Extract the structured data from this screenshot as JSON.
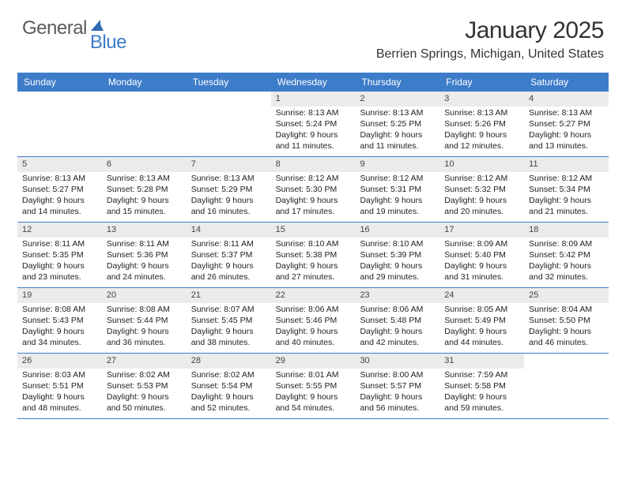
{
  "logo": {
    "general": "General",
    "blue": "Blue"
  },
  "title": "January 2025",
  "location": "Berrien Springs, Michigan, United States",
  "day_headers": [
    "Sunday",
    "Monday",
    "Tuesday",
    "Wednesday",
    "Thursday",
    "Friday",
    "Saturday"
  ],
  "colors": {
    "header_bg": "#3d7cc9",
    "header_text": "#ffffff",
    "daynum_bg": "#ebebeb",
    "row_border": "#3d7cc9",
    "body_text": "#222222",
    "logo_gray": "#5a5a5a",
    "logo_blue": "#3d7cc9"
  },
  "fonts": {
    "title_size_pt": 22,
    "location_size_pt": 12,
    "dayheader_size_pt": 9,
    "body_size_pt": 8
  },
  "weeks": [
    [
      {
        "blank": true
      },
      {
        "blank": true
      },
      {
        "blank": true
      },
      {
        "num": "1",
        "sunrise": "Sunrise: 8:13 AM",
        "sunset": "Sunset: 5:24 PM",
        "day1": "Daylight: 9 hours",
        "day2": "and 11 minutes."
      },
      {
        "num": "2",
        "sunrise": "Sunrise: 8:13 AM",
        "sunset": "Sunset: 5:25 PM",
        "day1": "Daylight: 9 hours",
        "day2": "and 11 minutes."
      },
      {
        "num": "3",
        "sunrise": "Sunrise: 8:13 AM",
        "sunset": "Sunset: 5:26 PM",
        "day1": "Daylight: 9 hours",
        "day2": "and 12 minutes."
      },
      {
        "num": "4",
        "sunrise": "Sunrise: 8:13 AM",
        "sunset": "Sunset: 5:27 PM",
        "day1": "Daylight: 9 hours",
        "day2": "and 13 minutes."
      }
    ],
    [
      {
        "num": "5",
        "sunrise": "Sunrise: 8:13 AM",
        "sunset": "Sunset: 5:27 PM",
        "day1": "Daylight: 9 hours",
        "day2": "and 14 minutes."
      },
      {
        "num": "6",
        "sunrise": "Sunrise: 8:13 AM",
        "sunset": "Sunset: 5:28 PM",
        "day1": "Daylight: 9 hours",
        "day2": "and 15 minutes."
      },
      {
        "num": "7",
        "sunrise": "Sunrise: 8:13 AM",
        "sunset": "Sunset: 5:29 PM",
        "day1": "Daylight: 9 hours",
        "day2": "and 16 minutes."
      },
      {
        "num": "8",
        "sunrise": "Sunrise: 8:12 AM",
        "sunset": "Sunset: 5:30 PM",
        "day1": "Daylight: 9 hours",
        "day2": "and 17 minutes."
      },
      {
        "num": "9",
        "sunrise": "Sunrise: 8:12 AM",
        "sunset": "Sunset: 5:31 PM",
        "day1": "Daylight: 9 hours",
        "day2": "and 19 minutes."
      },
      {
        "num": "10",
        "sunrise": "Sunrise: 8:12 AM",
        "sunset": "Sunset: 5:32 PM",
        "day1": "Daylight: 9 hours",
        "day2": "and 20 minutes."
      },
      {
        "num": "11",
        "sunrise": "Sunrise: 8:12 AM",
        "sunset": "Sunset: 5:34 PM",
        "day1": "Daylight: 9 hours",
        "day2": "and 21 minutes."
      }
    ],
    [
      {
        "num": "12",
        "sunrise": "Sunrise: 8:11 AM",
        "sunset": "Sunset: 5:35 PM",
        "day1": "Daylight: 9 hours",
        "day2": "and 23 minutes."
      },
      {
        "num": "13",
        "sunrise": "Sunrise: 8:11 AM",
        "sunset": "Sunset: 5:36 PM",
        "day1": "Daylight: 9 hours",
        "day2": "and 24 minutes."
      },
      {
        "num": "14",
        "sunrise": "Sunrise: 8:11 AM",
        "sunset": "Sunset: 5:37 PM",
        "day1": "Daylight: 9 hours",
        "day2": "and 26 minutes."
      },
      {
        "num": "15",
        "sunrise": "Sunrise: 8:10 AM",
        "sunset": "Sunset: 5:38 PM",
        "day1": "Daylight: 9 hours",
        "day2": "and 27 minutes."
      },
      {
        "num": "16",
        "sunrise": "Sunrise: 8:10 AM",
        "sunset": "Sunset: 5:39 PM",
        "day1": "Daylight: 9 hours",
        "day2": "and 29 minutes."
      },
      {
        "num": "17",
        "sunrise": "Sunrise: 8:09 AM",
        "sunset": "Sunset: 5:40 PM",
        "day1": "Daylight: 9 hours",
        "day2": "and 31 minutes."
      },
      {
        "num": "18",
        "sunrise": "Sunrise: 8:09 AM",
        "sunset": "Sunset: 5:42 PM",
        "day1": "Daylight: 9 hours",
        "day2": "and 32 minutes."
      }
    ],
    [
      {
        "num": "19",
        "sunrise": "Sunrise: 8:08 AM",
        "sunset": "Sunset: 5:43 PM",
        "day1": "Daylight: 9 hours",
        "day2": "and 34 minutes."
      },
      {
        "num": "20",
        "sunrise": "Sunrise: 8:08 AM",
        "sunset": "Sunset: 5:44 PM",
        "day1": "Daylight: 9 hours",
        "day2": "and 36 minutes."
      },
      {
        "num": "21",
        "sunrise": "Sunrise: 8:07 AM",
        "sunset": "Sunset: 5:45 PM",
        "day1": "Daylight: 9 hours",
        "day2": "and 38 minutes."
      },
      {
        "num": "22",
        "sunrise": "Sunrise: 8:06 AM",
        "sunset": "Sunset: 5:46 PM",
        "day1": "Daylight: 9 hours",
        "day2": "and 40 minutes."
      },
      {
        "num": "23",
        "sunrise": "Sunrise: 8:06 AM",
        "sunset": "Sunset: 5:48 PM",
        "day1": "Daylight: 9 hours",
        "day2": "and 42 minutes."
      },
      {
        "num": "24",
        "sunrise": "Sunrise: 8:05 AM",
        "sunset": "Sunset: 5:49 PM",
        "day1": "Daylight: 9 hours",
        "day2": "and 44 minutes."
      },
      {
        "num": "25",
        "sunrise": "Sunrise: 8:04 AM",
        "sunset": "Sunset: 5:50 PM",
        "day1": "Daylight: 9 hours",
        "day2": "and 46 minutes."
      }
    ],
    [
      {
        "num": "26",
        "sunrise": "Sunrise: 8:03 AM",
        "sunset": "Sunset: 5:51 PM",
        "day1": "Daylight: 9 hours",
        "day2": "and 48 minutes."
      },
      {
        "num": "27",
        "sunrise": "Sunrise: 8:02 AM",
        "sunset": "Sunset: 5:53 PM",
        "day1": "Daylight: 9 hours",
        "day2": "and 50 minutes."
      },
      {
        "num": "28",
        "sunrise": "Sunrise: 8:02 AM",
        "sunset": "Sunset: 5:54 PM",
        "day1": "Daylight: 9 hours",
        "day2": "and 52 minutes."
      },
      {
        "num": "29",
        "sunrise": "Sunrise: 8:01 AM",
        "sunset": "Sunset: 5:55 PM",
        "day1": "Daylight: 9 hours",
        "day2": "and 54 minutes."
      },
      {
        "num": "30",
        "sunrise": "Sunrise: 8:00 AM",
        "sunset": "Sunset: 5:57 PM",
        "day1": "Daylight: 9 hours",
        "day2": "and 56 minutes."
      },
      {
        "num": "31",
        "sunrise": "Sunrise: 7:59 AM",
        "sunset": "Sunset: 5:58 PM",
        "day1": "Daylight: 9 hours",
        "day2": "and 59 minutes."
      },
      {
        "blank": true
      }
    ]
  ]
}
